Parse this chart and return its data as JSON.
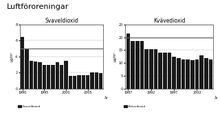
{
  "title": "Luftföroreningar",
  "left_title": "Svaveldioxid",
  "right_title": "Kvävedioxid",
  "left_ylabel": "µg/m³",
  "right_ylabel": "µg/m³",
  "xlabel": "År",
  "left_legend": "Svaveldioxid",
  "right_legend": "Kvävedioxid",
  "left_hline": 5.0,
  "right_hline": 20.0,
  "left_ylim": [
    0,
    8
  ],
  "right_ylim": [
    0,
    25
  ],
  "left_yticks": [
    0,
    2,
    4,
    6,
    8
  ],
  "right_yticks": [
    0,
    5,
    10,
    15,
    20,
    25
  ],
  "left_years": [
    1990,
    1991,
    1992,
    1993,
    1994,
    1995,
    1996,
    1997,
    1998,
    1999,
    2000,
    2001,
    2002,
    2003,
    2004,
    2005,
    2006,
    2007,
    2008
  ],
  "left_values": [
    6.5,
    5.0,
    3.5,
    3.4,
    3.3,
    3.0,
    3.0,
    3.0,
    3.3,
    3.0,
    3.5,
    1.6,
    1.6,
    1.7,
    1.7,
    1.7,
    2.0,
    2.0,
    1.9
  ],
  "right_years": [
    1987,
    1988,
    1989,
    1990,
    1991,
    1992,
    1993,
    1994,
    1995,
    1996,
    1997,
    1998,
    1999,
    2000,
    2001,
    2002,
    2003,
    2004,
    2005
  ],
  "right_values": [
    21.5,
    18.5,
    18.5,
    18.5,
    15.5,
    15.5,
    15.5,
    14.0,
    14.0,
    14.0,
    12.5,
    12.0,
    11.5,
    11.5,
    11.0,
    11.5,
    13.0,
    12.0,
    11.5
  ],
  "bar_color": "#1a1a1a",
  "hline_color": "#666666",
  "bg_color": "#ffffff",
  "left_xtick_years": [
    1990,
    1995,
    2000,
    2005
  ],
  "right_xtick_years": [
    1987,
    1992,
    1997,
    2002
  ]
}
